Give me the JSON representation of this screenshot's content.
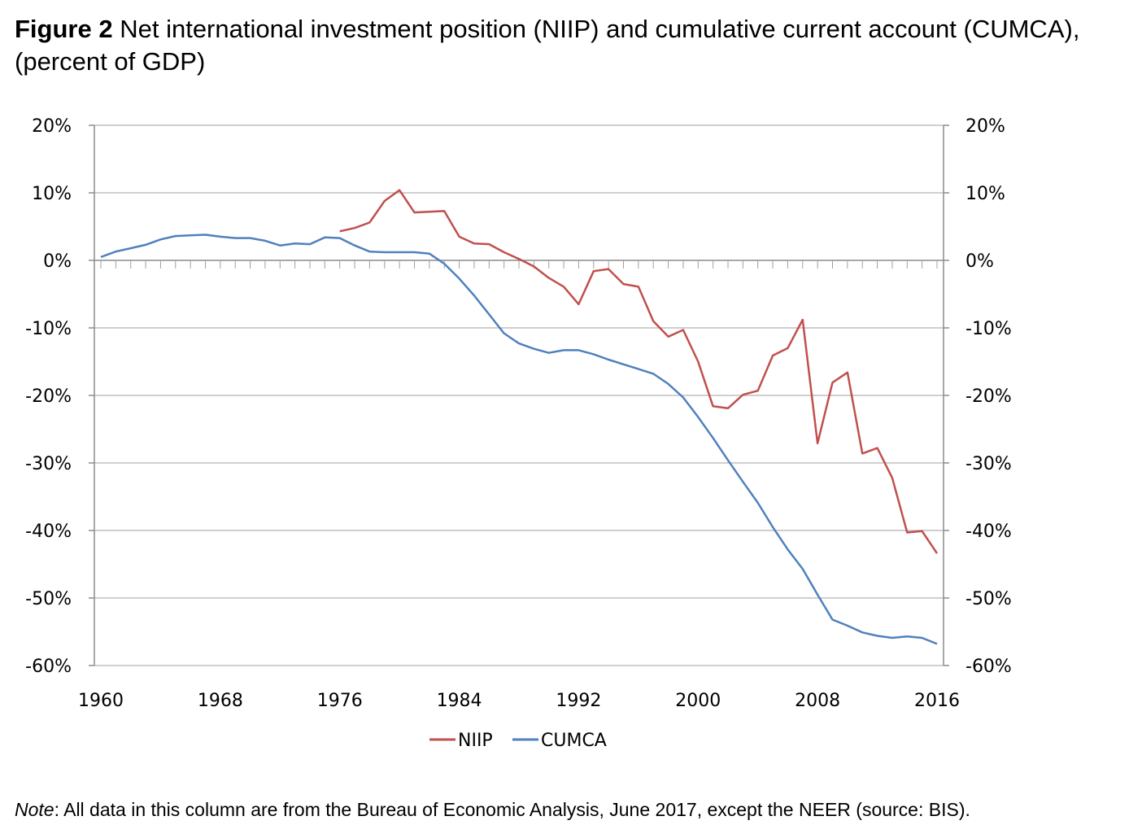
{
  "figure": {
    "label": "Figure 2",
    "title": "Net international investment position (NIIP) and cumulative current account (CUMCA), (percent of GDP)"
  },
  "note": {
    "label": "Note",
    "text": ": All data in this column are from the Bureau of Economic Analysis, June 2017, except the NEER (source: BIS)."
  },
  "colors": {
    "niip": "#c0504d",
    "cumca": "#4f81bd",
    "grid": "#bfbfbf",
    "axis": "#8c8c8c"
  },
  "chart_data": {
    "type": "line",
    "title": "Net international investment position (NIIP) and cumulative current account (CUMCA), (percent of GDP)",
    "xlabel": "",
    "ylabel": "",
    "xlim": [
      1960,
      2016
    ],
    "ylim": [
      -60,
      20
    ],
    "x_ticks": [
      1960,
      1968,
      1976,
      1984,
      1992,
      2000,
      2008,
      2016
    ],
    "y_ticks": [
      20,
      10,
      0,
      -10,
      -20,
      -30,
      -40,
      -50,
      -60
    ],
    "y_tick_labels": [
      "20%",
      "10%",
      "0%",
      "-10%",
      "-20%",
      "-30%",
      "-40%",
      "-50%",
      "-60%"
    ],
    "legend_position": "bottom-center",
    "series": [
      {
        "name": "NIIP",
        "color": "#c0504d",
        "x": [
          1976,
          1977,
          1978,
          1979,
          1980,
          1981,
          1982,
          1983,
          1984,
          1985,
          1986,
          1987,
          1988,
          1989,
          1990,
          1991,
          1992,
          1993,
          1994,
          1995,
          1996,
          1997,
          1998,
          1999,
          2000,
          2001,
          2002,
          2003,
          2004,
          2005,
          2006,
          2007,
          2008,
          2009,
          2010,
          2011,
          2012,
          2013,
          2014,
          2015,
          2016
        ],
        "values": [
          4.3,
          4.8,
          5.6,
          8.8,
          10.4,
          7.1,
          7.2,
          7.3,
          3.5,
          2.5,
          2.4,
          1.2,
          0.2,
          -0.9,
          -2.6,
          -3.9,
          -6.5,
          -1.6,
          -1.3,
          -3.5,
          -3.9,
          -9.0,
          -11.3,
          -10.3,
          -15.0,
          -21.6,
          -21.9,
          -19.9,
          -19.3,
          -14.1,
          -13.0,
          -8.8,
          -27.1,
          -18.1,
          -16.6,
          -28.6,
          -27.8,
          -32.2,
          -40.3,
          -40.1,
          -43.4
        ]
      },
      {
        "name": "CUMCA",
        "color": "#4f81bd",
        "x": [
          1960,
          1961,
          1962,
          1963,
          1964,
          1965,
          1966,
          1967,
          1968,
          1969,
          1970,
          1971,
          1972,
          1973,
          1974,
          1975,
          1976,
          1977,
          1978,
          1979,
          1980,
          1981,
          1982,
          1983,
          1984,
          1985,
          1986,
          1987,
          1988,
          1989,
          1990,
          1991,
          1992,
          1993,
          1994,
          1995,
          1996,
          1997,
          1998,
          1999,
          2000,
          2001,
          2002,
          2003,
          2004,
          2005,
          2006,
          2007,
          2008,
          2009,
          2010,
          2011,
          2012,
          2013,
          2014,
          2015,
          2016
        ],
        "values": [
          0.5,
          1.3,
          1.8,
          2.3,
          3.1,
          3.6,
          3.7,
          3.8,
          3.5,
          3.3,
          3.3,
          2.9,
          2.2,
          2.5,
          2.4,
          3.4,
          3.3,
          2.2,
          1.3,
          1.2,
          1.2,
          1.2,
          1.0,
          -0.5,
          -2.7,
          -5.2,
          -8.0,
          -10.8,
          -12.3,
          -13.1,
          -13.7,
          -13.3,
          -13.3,
          -13.9,
          -14.7,
          -15.4,
          -16.1,
          -16.8,
          -18.3,
          -20.3,
          -23.2,
          -26.3,
          -29.6,
          -32.8,
          -35.9,
          -39.5,
          -42.8,
          -45.7,
          -49.5,
          -53.2,
          -54.1,
          -55.1,
          -55.6,
          -55.9,
          -55.7,
          -55.9,
          -56.8
        ]
      }
    ]
  }
}
